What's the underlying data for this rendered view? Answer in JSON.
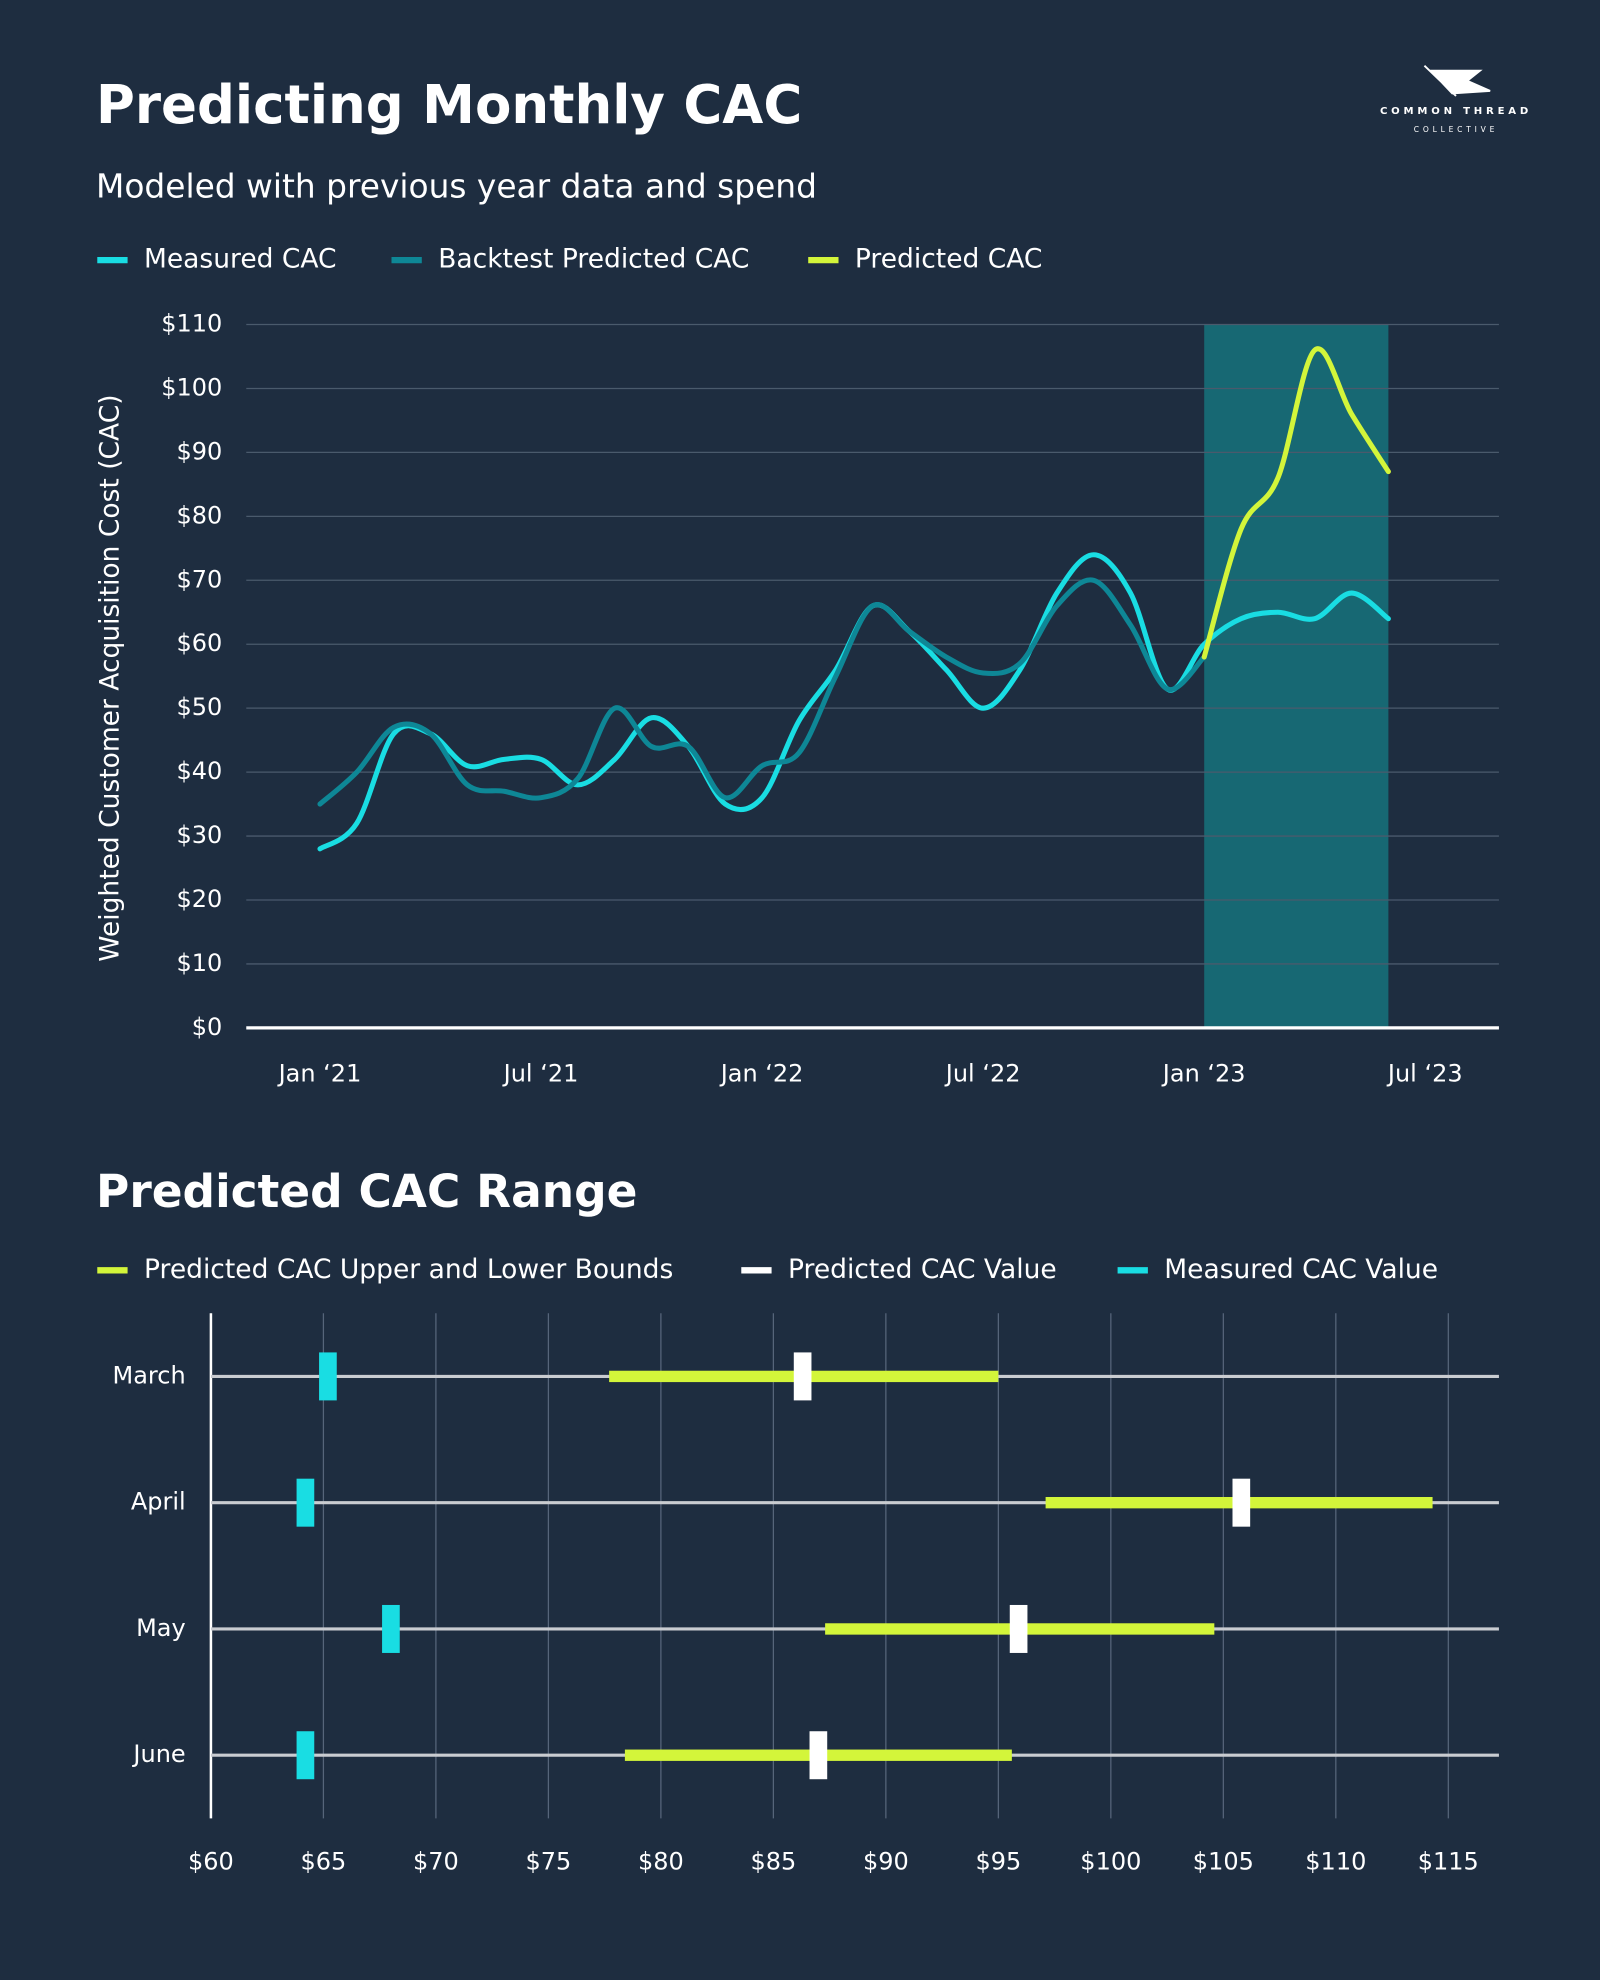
{
  "logo": {
    "name": "COMMON THREAD",
    "sub": "COLLECTIVE"
  },
  "chart_data": [
    {
      "type": "line",
      "title": "Predicting Monthly CAC",
      "subtitle": "Modeled with previous year data and spend",
      "y_label": "Weighted Customer Acquisition Cost (CAC)",
      "x": [
        "2021-01",
        "2021-02",
        "2021-03",
        "2021-04",
        "2021-05",
        "2021-06",
        "2021-07",
        "2021-08",
        "2021-09",
        "2021-10",
        "2021-11",
        "2021-12",
        "2022-01",
        "2022-02",
        "2022-03",
        "2022-04",
        "2022-05",
        "2022-06",
        "2022-07",
        "2022-08",
        "2022-09",
        "2022-10",
        "2022-11",
        "2022-12",
        "2023-01",
        "2023-02",
        "2023-03",
        "2023-04",
        "2023-05",
        "2023-06"
      ],
      "series": [
        {
          "name": "Measured CAC",
          "color": "#19dde3",
          "values": [
            28,
            32,
            46,
            46,
            41,
            42,
            42,
            38,
            42,
            48.5,
            44,
            35,
            36,
            48,
            56,
            66,
            62,
            56,
            50,
            56,
            68,
            74,
            68,
            53,
            60,
            64,
            65,
            64,
            68,
            64
          ]
        },
        {
          "name": "Backtest Predicted CAC",
          "color": "#0e8796",
          "values": [
            35,
            40,
            47,
            46,
            38,
            37,
            36,
            39,
            50,
            44,
            44,
            36,
            41,
            43,
            55,
            66,
            62,
            58,
            55.5,
            57,
            66,
            70,
            63,
            53,
            58,
            null,
            null,
            null,
            null,
            null
          ]
        },
        {
          "name": "Predicted CAC",
          "color": "#d3f53a",
          "values": [
            null,
            null,
            null,
            null,
            null,
            null,
            null,
            null,
            null,
            null,
            null,
            null,
            null,
            null,
            null,
            null,
            null,
            null,
            null,
            null,
            null,
            null,
            null,
            null,
            58,
            78,
            86,
            106,
            96,
            87
          ]
        }
      ],
      "xlim": [
        "2020-11",
        "2023-09"
      ],
      "xticks": [
        {
          "value": "2021-01",
          "label": "Jan ‘21"
        },
        {
          "value": "2021-07",
          "label": "Jul ‘21"
        },
        {
          "value": "2022-01",
          "label": "Jan ‘22"
        },
        {
          "value": "2022-07",
          "label": "Jul ‘22"
        },
        {
          "value": "2023-01",
          "label": "Jan ‘23"
        },
        {
          "value": "2023-07",
          "label": "Jul ‘23"
        }
      ],
      "ylim": [
        0,
        110
      ],
      "yticks": [
        {
          "value": 0,
          "label": "$0"
        },
        {
          "value": 10,
          "label": "$10"
        },
        {
          "value": 20,
          "label": "$20"
        },
        {
          "value": 30,
          "label": "$30"
        },
        {
          "value": 40,
          "label": "$40"
        },
        {
          "value": 50,
          "label": "$50"
        },
        {
          "value": 60,
          "label": "$60"
        },
        {
          "value": 70,
          "label": "$70"
        },
        {
          "value": 80,
          "label": "$80"
        },
        {
          "value": 90,
          "label": "$90"
        },
        {
          "value": 100,
          "label": "$100"
        },
        {
          "value": 110,
          "label": "$110"
        }
      ],
      "grid": true,
      "highlight": [
        "2023-01",
        "2023-06"
      ],
      "highlight_color": "#176873"
    },
    {
      "type": "range",
      "title": "Predicted CAC Range",
      "categories": [
        "March",
        "April",
        "May",
        "June"
      ],
      "series": [
        {
          "name": "Predicted CAC Upper and Lower Bounds",
          "color": "#d3f53a",
          "lower": [
            77.7,
            97.1,
            87.3,
            78.4
          ],
          "upper": [
            95,
            114.3,
            104.6,
            95.6
          ]
        },
        {
          "name": "Predicted CAC Value",
          "color": "#ffffff",
          "values": [
            86.3,
            105.8,
            95.9,
            87
          ]
        },
        {
          "name": "Measured CAC Value",
          "color": "#19dde3",
          "values": [
            65.2,
            64.2,
            68,
            64.2
          ]
        }
      ],
      "xlim": [
        60,
        117.25
      ],
      "xticks": [
        {
          "value": 60,
          "label": "$60"
        },
        {
          "value": 65,
          "label": "$65"
        },
        {
          "value": 70,
          "label": "$70"
        },
        {
          "value": 75,
          "label": "$75"
        },
        {
          "value": 80,
          "label": "$80"
        },
        {
          "value": 85,
          "label": "$85"
        },
        {
          "value": 90,
          "label": "$90"
        },
        {
          "value": 95,
          "label": "$95"
        },
        {
          "value": 100,
          "label": "$100"
        },
        {
          "value": 105,
          "label": "$105"
        },
        {
          "value": 110,
          "label": "$110"
        },
        {
          "value": 115,
          "label": "$115"
        }
      ],
      "grid": true
    }
  ]
}
